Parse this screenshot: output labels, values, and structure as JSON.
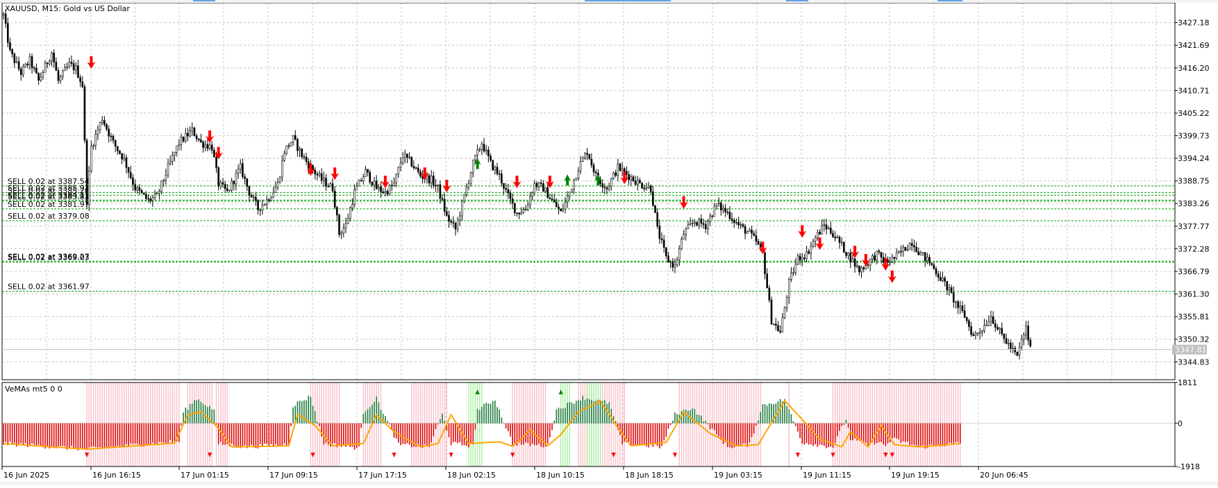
{
  "window": {
    "symbol_header": "XAUUSD, M15:  Gold vs US Dollar",
    "current_price_label": "3347.81",
    "colors": {
      "background": "#ffffff",
      "grid": "#c8c8c8",
      "candle": "#000000",
      "sell_line": "#00a000",
      "sell_arrow": "#ff0000",
      "buy_arrow": "#008000",
      "hist_bear": "#e00000",
      "hist_bull": "#1e7a3c",
      "band_sell": "#f7c0c8",
      "band_buy": "#a8f0a0",
      "signal_line": "#ffa500"
    }
  },
  "chart_data": [
    {
      "type": "candlestick",
      "title": "XAUUSD, M15:  Gold vs US Dollar",
      "ylim": [
        3340.5,
        3432.0
      ],
      "y_ticks": [
        "3427.18",
        "3421.69",
        "3416.20",
        "3410.71",
        "3405.22",
        "3399.73",
        "3394.24",
        "3388.75",
        "3383.26",
        "3377.77",
        "3372.28",
        "3366.79",
        "3361.30",
        "3355.81",
        "3350.32",
        "3344.83"
      ],
      "x_ticks": [
        "16 Jun 2025",
        "16 Jun 16:15",
        "17 Jun 01:15",
        "17 Jun 09:15",
        "17 Jun 17:15",
        "18 Jun 02:15",
        "18 Jun 10:15",
        "18 Jun 18:15",
        "19 Jun 03:15",
        "19 Jun 11:15",
        "19 Jun 19:15",
        "20 Jun 06:45"
      ],
      "price_path": [
        [
          0,
          3429
        ],
        [
          3,
          3420
        ],
        [
          8,
          3415
        ],
        [
          12,
          3418
        ],
        [
          16,
          3413
        ],
        [
          22,
          3420
        ],
        [
          25,
          3413
        ],
        [
          30,
          3417
        ],
        [
          33,
          3416
        ],
        [
          36,
          3412
        ],
        [
          38,
          3384
        ],
        [
          40,
          3397
        ],
        [
          45,
          3404
        ],
        [
          50,
          3398
        ],
        [
          55,
          3394
        ],
        [
          60,
          3387
        ],
        [
          66,
          3384
        ],
        [
          70,
          3385
        ],
        [
          75,
          3392
        ],
        [
          80,
          3398
        ],
        [
          86,
          3401
        ],
        [
          90,
          3398
        ],
        [
          95,
          3397
        ],
        [
          98,
          3388
        ],
        [
          102,
          3386
        ],
        [
          108,
          3392
        ],
        [
          112,
          3386
        ],
        [
          116,
          3382
        ],
        [
          120,
          3384
        ],
        [
          125,
          3388
        ],
        [
          128,
          3396
        ],
        [
          132,
          3399
        ],
        [
          136,
          3395
        ],
        [
          140,
          3392
        ],
        [
          145,
          3389
        ],
        [
          150,
          3387
        ],
        [
          153,
          3376
        ],
        [
          156,
          3378
        ],
        [
          160,
          3386
        ],
        [
          165,
          3391
        ],
        [
          170,
          3387
        ],
        [
          174,
          3386
        ],
        [
          178,
          3388
        ],
        [
          182,
          3395
        ],
        [
          186,
          3393
        ],
        [
          190,
          3390
        ],
        [
          195,
          3389
        ],
        [
          198,
          3387
        ],
        [
          202,
          3380
        ],
        [
          206,
          3377
        ],
        [
          210,
          3385
        ],
        [
          214,
          3393
        ],
        [
          218,
          3398
        ],
        [
          222,
          3393
        ],
        [
          226,
          3390
        ],
        [
          230,
          3385
        ],
        [
          234,
          3381
        ],
        [
          238,
          3382
        ],
        [
          242,
          3388
        ],
        [
          246,
          3387
        ],
        [
          250,
          3384
        ],
        [
          254,
          3381
        ],
        [
          258,
          3386
        ],
        [
          262,
          3392
        ],
        [
          266,
          3396
        ],
        [
          270,
          3390
        ],
        [
          275,
          3387
        ],
        [
          280,
          3392
        ],
        [
          285,
          3390
        ],
        [
          290,
          3388
        ],
        [
          295,
          3387
        ],
        [
          298,
          3377
        ],
        [
          302,
          3370
        ],
        [
          306,
          3368
        ],
        [
          310,
          3376
        ],
        [
          315,
          3379
        ],
        [
          320,
          3378
        ],
        [
          325,
          3383
        ],
        [
          330,
          3381
        ],
        [
          335,
          3378
        ],
        [
          340,
          3376
        ],
        [
          343,
          3374
        ],
        [
          346,
          3371
        ],
        [
          350,
          3355
        ],
        [
          354,
          3352
        ],
        [
          358,
          3364
        ],
        [
          362,
          3370
        ],
        [
          366,
          3371
        ],
        [
          370,
          3375
        ],
        [
          374,
          3378
        ],
        [
          378,
          3376
        ],
        [
          382,
          3373
        ],
        [
          386,
          3370
        ],
        [
          390,
          3367
        ],
        [
          394,
          3369
        ],
        [
          398,
          3371
        ],
        [
          402,
          3369
        ],
        [
          406,
          3370
        ],
        [
          410,
          3372
        ],
        [
          414,
          3374
        ],
        [
          418,
          3371
        ],
        [
          422,
          3369
        ],
        [
          426,
          3366
        ],
        [
          430,
          3363
        ],
        [
          434,
          3359
        ],
        [
          438,
          3356
        ],
        [
          442,
          3351
        ],
        [
          446,
          3353
        ],
        [
          450,
          3356
        ],
        [
          454,
          3352
        ],
        [
          458,
          3349
        ],
        [
          462,
          3346
        ],
        [
          464,
          3350
        ],
        [
          466,
          3353
        ],
        [
          468,
          3348
        ]
      ],
      "sell_levels": [
        {
          "label": "SELL 0.02 at 3387.54",
          "price": 3387.54
        },
        {
          "label": "SELL 0.02 at 3385.93",
          "price": 3385.93
        },
        {
          "label": "SELL 0.02 at 3385.28",
          "price": 3385.28
        },
        {
          "label": "SELL 0.02 at 3384.11",
          "price": 3384.11
        },
        {
          "label": "SELL 0.02 at 3383.83",
          "price": 3383.83
        },
        {
          "label": "SELL 0.02 at 3381.97",
          "price": 3381.97
        },
        {
          "label": "SELL 0.02 at 3379.08",
          "price": 3379.08
        },
        {
          "label": "SELL 0.02 at 3369.27",
          "price": 3369.27
        },
        {
          "label": "SELL 0.02 at 3369.03",
          "price": 3369.03
        },
        {
          "label": "SELL 0.02 at 3361.97",
          "price": 3361.97
        }
      ],
      "sell_arrows": [
        [
          40,
          3417
        ],
        [
          94,
          3399
        ],
        [
          98,
          3395
        ],
        [
          140,
          3391
        ],
        [
          151,
          3390
        ],
        [
          174,
          3388
        ],
        [
          192,
          3390
        ],
        [
          202,
          3387
        ],
        [
          234,
          3388
        ],
        [
          249,
          3388
        ],
        [
          283,
          3389
        ],
        [
          310,
          3383
        ],
        [
          346,
          3372
        ],
        [
          364,
          3376
        ],
        [
          372,
          3373
        ],
        [
          388,
          3371
        ],
        [
          393,
          3369
        ],
        [
          402,
          3368
        ],
        [
          405,
          3365
        ]
      ],
      "buy_arrows": [
        [
          216,
          3393
        ],
        [
          257,
          3389
        ],
        [
          271,
          3389
        ]
      ]
    },
    {
      "type": "histogram",
      "title": "VeMAs mt5 0 0",
      "ylim": [
        -1918,
        1811
      ],
      "y_ticks": [
        "1811",
        "0",
        "-1918"
      ],
      "bands_sell": [
        [
          38,
          80
        ],
        [
          84,
          95
        ],
        [
          97,
          102
        ],
        [
          140,
          153
        ],
        [
          164,
          172
        ],
        [
          186,
          202
        ],
        [
          232,
          247
        ],
        [
          262,
          283
        ],
        [
          308,
          345
        ],
        [
          358,
          358
        ],
        [
          378,
          400
        ],
        [
          400,
          436
        ]
      ],
      "bands_buy": [
        [
          212,
          218
        ],
        [
          254,
          258
        ],
        [
          266,
          272
        ]
      ],
      "hist_path": [
        [
          0,
          -900
        ],
        [
          38,
          -1150
        ],
        [
          80,
          -800
        ],
        [
          82,
          500
        ],
        [
          88,
          1100
        ],
        [
          96,
          600
        ],
        [
          98,
          -900
        ],
        [
          110,
          -1050
        ],
        [
          130,
          -950
        ],
        [
          132,
          800
        ],
        [
          140,
          1200
        ],
        [
          146,
          -900
        ],
        [
          162,
          -1100
        ],
        [
          164,
          500
        ],
        [
          170,
          1100
        ],
        [
          180,
          -950
        ],
        [
          194,
          -1050
        ],
        [
          200,
          400
        ],
        [
          204,
          -900
        ],
        [
          214,
          -1000
        ],
        [
          216,
          600
        ],
        [
          224,
          1050
        ],
        [
          232,
          -900
        ],
        [
          248,
          -1000
        ],
        [
          252,
          600
        ],
        [
          264,
          1150
        ],
        [
          276,
          900
        ],
        [
          282,
          -900
        ],
        [
          300,
          -1050
        ],
        [
          306,
          400
        ],
        [
          314,
          700
        ],
        [
          330,
          -1050
        ],
        [
          340,
          -950
        ],
        [
          346,
          800
        ],
        [
          356,
          1050
        ],
        [
          364,
          -850
        ],
        [
          378,
          -1050
        ],
        [
          384,
          200
        ],
        [
          386,
          -700
        ],
        [
          395,
          -950
        ],
        [
          398,
          -800
        ],
        [
          402,
          -1000
        ],
        [
          405,
          -700
        ],
        [
          418,
          -1050
        ],
        [
          434,
          -900
        ]
      ],
      "signal_path": [
        [
          0,
          -900
        ],
        [
          38,
          -1150
        ],
        [
          78,
          -880
        ],
        [
          84,
          380
        ],
        [
          90,
          520
        ],
        [
          98,
          -220
        ],
        [
          104,
          -1050
        ],
        [
          130,
          -1000
        ],
        [
          134,
          380
        ],
        [
          142,
          -100
        ],
        [
          150,
          -1000
        ],
        [
          164,
          -900
        ],
        [
          170,
          380
        ],
        [
          178,
          -380
        ],
        [
          190,
          -1050
        ],
        [
          198,
          -900
        ],
        [
          204,
          380
        ],
        [
          212,
          -900
        ],
        [
          226,
          -820
        ],
        [
          232,
          -1020
        ],
        [
          240,
          -300
        ],
        [
          248,
          -1000
        ],
        [
          254,
          -500
        ],
        [
          262,
          500
        ],
        [
          272,
          1000
        ],
        [
          280,
          -200
        ],
        [
          286,
          -1000
        ],
        [
          302,
          -850
        ],
        [
          310,
          500
        ],
        [
          322,
          -450
        ],
        [
          334,
          -1000
        ],
        [
          344,
          -950
        ],
        [
          356,
          1000
        ],
        [
          362,
          380
        ],
        [
          372,
          -700
        ],
        [
          382,
          -1050
        ],
        [
          386,
          -380
        ],
        [
          394,
          -1050
        ],
        [
          400,
          -100
        ],
        [
          406,
          -950
        ],
        [
          418,
          -1050
        ],
        [
          436,
          -900
        ]
      ],
      "sell_markers": [
        38,
        94,
        141,
        178,
        204,
        232,
        278,
        306,
        362,
        378,
        402,
        405
      ],
      "buy_markers": [
        216,
        254
      ]
    }
  ]
}
